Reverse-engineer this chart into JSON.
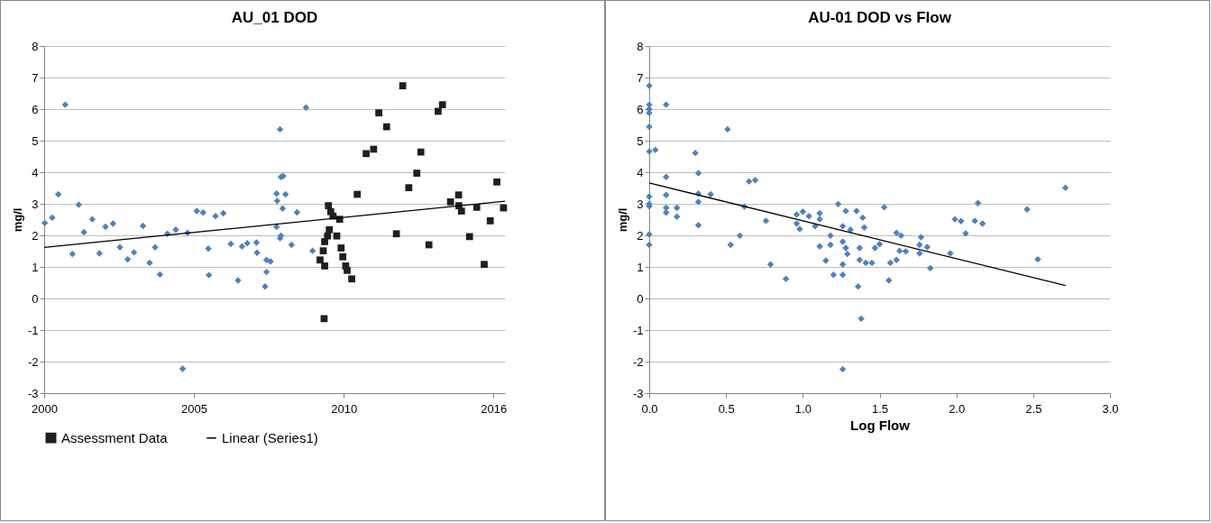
{
  "chart_data": [
    {
      "type": "scatter",
      "title": "AU_01 DOD",
      "ylabel": "mg/l",
      "xlim": [
        2000,
        2016
      ],
      "xticks": [
        2000,
        {
          "value": 2005.2,
          "label": "2005"
        },
        {
          "value": 2010.4,
          "label": "2010"
        },
        {
          "value": 2015.6,
          "label": "2016"
        }
      ],
      "ylim": [
        -3,
        8
      ],
      "yticks": [
        -3,
        -2,
        -1,
        0,
        1,
        2,
        3,
        4,
        5,
        6,
        7,
        8
      ],
      "grid": "y",
      "legend": "bottom",
      "series": [
        {
          "color": "#4f81bd",
          "marker": "diamond",
          "x": [
            2000.02,
            2000.28,
            2000.49,
            2000.73,
            2000.98,
            2001.2,
            2001.38,
            2001.67,
            2001.92,
            2002.13,
            2002.39,
            2002.63,
            2002.9,
            2003.12,
            2003.43,
            2003.66,
            2003.85,
            2004.02,
            2004.28,
            2004.57,
            2004.81,
            2004.98,
            2005.3,
            2005.52,
            2005.7,
            2005.72,
            2005.95,
            2006.22,
            2006.48,
            2006.73,
            2006.87,
            2007.05,
            2007.37,
            2007.39,
            2007.67,
            2007.72,
            2007.86,
            2007.72,
            2008.19,
            2009.09,
            2008.22,
            2008.3,
            2008.07,
            2008.38,
            2008.09,
            2008.28,
            2008.78,
            2008.07,
            2008.22,
            2008.19,
            2008.59,
            2009.32
          ],
          "values": [
            2.39,
            2.56,
            3.3,
            6.14,
            1.41,
            2.97,
            2.1,
            2.51,
            1.43,
            2.27,
            2.37,
            1.62,
            1.24,
            1.46,
            2.3,
            1.13,
            1.62,
            0.76,
            2.05,
            2.18,
            -2.23,
            2.08,
            2.77,
            2.72,
            1.58,
            0.74,
            2.61,
            2.7,
            1.73,
            0.57,
            1.65,
            1.75,
            1.77,
            1.45,
            0.38,
            1.22,
            1.17,
            0.84,
            5.36,
            6.05,
            3.85,
            3.88,
            3.32,
            3.3,
            3.09,
            2.85,
            2.73,
            2.27,
            1.99,
            1.91,
            1.7,
            1.51
          ]
        },
        {
          "name": "Assessment Data",
          "color": "#1f1f1f",
          "marker": "square",
          "x": [
            2009.72,
            2009.87,
            2009.95,
            2010.03,
            2010.16,
            2010.26,
            2009.9,
            2009.84,
            2010.16,
            2009.74,
            2009.69,
            2010.31,
            2009.58,
            2009.74,
            2010.37,
            2010.47,
            2010.52,
            2010.68,
            2010.87,
            2011.18,
            2011.44,
            2011.62,
            2011.89,
            2012.45,
            2012.23,
            2012.66,
            2012.94,
            2013.08,
            2013.36,
            2013.68,
            2013.83,
            2014.11,
            2014.39,
            2014.4,
            2014.49,
            2014.77,
            2015.02,
            2015.28,
            2015.49,
            2015.72,
            2015.95
          ],
          "values": [
            -0.64,
            2.94,
            2.75,
            2.61,
            null,
            2.51,
            2.18,
            1.98,
            1.98,
            1.8,
            1.51,
            1.6,
            1.22,
            1.03,
            1.32,
            1.03,
            0.89,
            0.62,
            3.3,
            4.59,
            4.73,
            5.88,
            5.44,
            6.74,
            2.05,
            3.51,
            3.97,
            4.64,
            1.7,
            5.93,
            6.14,
            3.06,
            3.28,
            2.94,
            2.77,
            1.96,
            2.89,
            1.08,
            2.46,
            3.69,
            2.87
          ]
        },
        {
          "name": "Linear (Series1)",
          "type": "line",
          "color": "#000000",
          "x": [
            2000,
            2016
          ],
          "values": [
            1.62,
            3.08
          ]
        }
      ]
    },
    {
      "type": "scatter",
      "title": "AU-01 DOD vs Flow",
      "xlabel": "Log Flow",
      "ylabel": "mg/l",
      "xlim": [
        0,
        3
      ],
      "xticks": [
        {
          "value": 0,
          "label": "0.0"
        },
        {
          "value": 0.5,
          "label": "0.5"
        },
        {
          "value": 1,
          "label": "1.0"
        },
        {
          "value": 1.5,
          "label": "1.5"
        },
        {
          "value": 2,
          "label": "2.0"
        },
        {
          "value": 2.5,
          "label": "2.5"
        },
        {
          "value": 3,
          "label": "3.0"
        }
      ],
      "ylim": [
        -3,
        8
      ],
      "yticks": [
        -3,
        -2,
        -1,
        0,
        1,
        2,
        3,
        4,
        5,
        6,
        7,
        8
      ],
      "grid": "y",
      "series": [
        {
          "color": "#4f81bd",
          "marker": "diamond",
          "x": [
            0,
            0,
            0,
            0,
            0,
            0,
            0.04,
            0.11,
            0.51,
            0.3,
            0.32,
            0.11,
            0,
            0,
            0,
            0.11,
            0.11,
            0.11,
            0.18,
            0.18,
            0.32,
            0.32,
            0.4,
            0.32,
            0,
            0,
            0.53,
            0.59,
            0.62,
            0.65,
            0.69,
            0.76,
            0.79,
            0.89,
            0.96,
            1,
            0.96,
            0.98,
            1.04,
            1.08,
            1.11,
            1.11,
            1.18,
            1.18,
            1.11,
            1.15,
            1.2,
            1.23,
            1.28,
            1.26,
            1.26,
            1.28,
            1.29,
            1.26,
            1.26,
            1.31,
            1.26,
            1.35,
            1.39,
            1.4,
            1.36,
            1.38,
            1.37,
            1.37,
            1.41,
            1.45,
            1.47,
            1.5,
            1.53,
            1.56,
            1.57,
            1.61,
            1.64,
            1.61,
            1.63,
            1.67,
            1.76,
            1.77,
            1.76,
            1.81,
            1.83,
            1.96,
            1.99,
            2.03,
            2.06,
            2.12,
            2.14,
            2.17,
            2.46,
            2.53,
            2.71
          ],
          "values": [
            6.74,
            6.14,
            6,
            5.88,
            5.44,
            4.66,
            4.71,
            6.14,
            5.36,
            4.61,
            3.97,
            3.85,
            3.23,
            2.99,
            2.92,
            3.28,
            2.87,
            2.72,
            2.87,
            2.59,
            3.32,
            3.06,
            3.3,
            2.32,
            2.03,
            1.7,
            1.7,
            1.99,
            2.91,
            3.71,
            3.75,
            2.46,
            1.08,
            0.62,
            2.66,
            2.75,
            2.37,
            2.2,
            2.61,
            2.29,
            2.7,
            2.51,
            1.99,
            1.7,
            1.65,
            1.2,
            0.75,
            2.99,
            2.77,
            2.29,
            1.8,
            1.6,
            1.41,
            1.08,
            0.75,
            2.18,
            -2.24,
            2.77,
            2.56,
            2.25,
            0.38,
            -0.64,
            1.6,
            1.22,
            1.13,
            1.13,
            1.6,
            1.72,
            2.89,
            0.57,
            1.13,
            2.08,
            1.99,
            1.22,
            1.51,
            1.49,
            1.7,
            1.94,
            1.43,
            1.63,
            0.96,
            1.43,
            2.51,
            2.45,
            2.06,
            2.46,
            3.02,
            2.37,
            2.82,
            1.24,
            3.51
          ]
        },
        {
          "type": "line",
          "color": "#000000",
          "x": [
            0,
            2.71
          ],
          "values": [
            3.66,
            0.41
          ]
        }
      ]
    }
  ]
}
